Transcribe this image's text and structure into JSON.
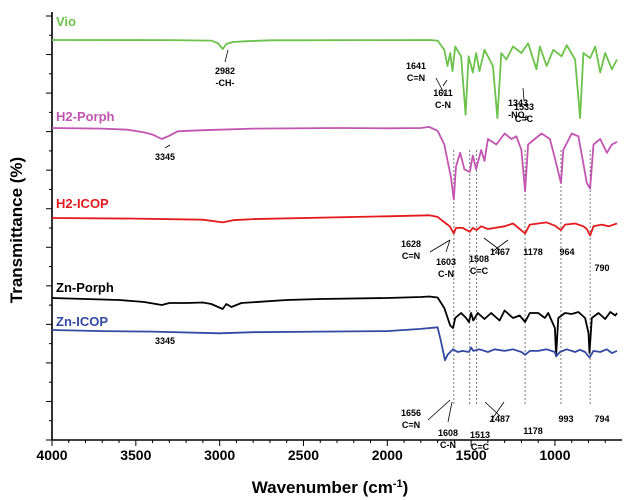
{
  "chart_data": {
    "type": "line",
    "xlabel": "Wavenumber (cm",
    "xlabel_sup": "-1",
    "xlabel_close": ")",
    "ylabel": "Transmittance (%)",
    "xlim": [
      4000,
      600
    ],
    "x_reversed": true,
    "x_ticks": [
      "4000",
      "3500",
      "3000",
      "2500",
      "2000",
      "1500",
      "1000"
    ],
    "x_tick_values": [
      4000,
      3500,
      3000,
      2500,
      2000,
      1500,
      1000
    ],
    "grid": false,
    "series": [
      {
        "name": "Vio",
        "color": "#6cc24a",
        "points": [
          [
            4000,
            0
          ],
          [
            3300,
            0.1
          ],
          [
            3050,
            1
          ],
          [
            3010,
            5
          ],
          [
            2982,
            14
          ],
          [
            2960,
            6
          ],
          [
            2920,
            3
          ],
          [
            2850,
            2
          ],
          [
            2700,
            0.5
          ],
          [
            2000,
            0.2
          ],
          [
            1750,
            0
          ],
          [
            1700,
            1
          ],
          [
            1660,
            15
          ],
          [
            1641,
            40
          ],
          [
            1625,
            20
          ],
          [
            1611,
            48
          ],
          [
            1595,
            10
          ],
          [
            1560,
            25
          ],
          [
            1533,
            115
          ],
          [
            1515,
            25
          ],
          [
            1490,
            50
          ],
          [
            1470,
            20
          ],
          [
            1450,
            48
          ],
          [
            1420,
            15
          ],
          [
            1390,
            30
          ],
          [
            1370,
            40
          ],
          [
            1343,
            120
          ],
          [
            1320,
            20
          ],
          [
            1290,
            30
          ],
          [
            1250,
            10
          ],
          [
            1200,
            20
          ],
          [
            1160,
            5
          ],
          [
            1110,
            45
          ],
          [
            1090,
            10
          ],
          [
            1050,
            40
          ],
          [
            1010,
            15
          ],
          [
            960,
            25
          ],
          [
            930,
            8
          ],
          [
            880,
            30
          ],
          [
            850,
            120
          ],
          [
            830,
            20
          ],
          [
            790,
            28
          ],
          [
            760,
            10
          ],
          [
            730,
            50
          ],
          [
            700,
            20
          ],
          [
            660,
            45
          ],
          [
            630,
            30
          ]
        ]
      },
      {
        "name": "H2-Porph",
        "color": "#c155b1",
        "points": [
          [
            4000,
            0
          ],
          [
            3700,
            1
          ],
          [
            3550,
            3
          ],
          [
            3450,
            8
          ],
          [
            3400,
            12
          ],
          [
            3345,
            20
          ],
          [
            3300,
            14
          ],
          [
            3250,
            6
          ],
          [
            3100,
            4
          ],
          [
            3000,
            3
          ],
          [
            2800,
            1
          ],
          [
            2300,
            0
          ],
          [
            2000,
            0.5
          ],
          [
            1800,
            0
          ],
          [
            1750,
            -2
          ],
          [
            1700,
            5
          ],
          [
            1660,
            30
          ],
          [
            1620,
            90
          ],
          [
            1603,
            130
          ],
          [
            1590,
            70
          ],
          [
            1565,
            45
          ],
          [
            1540,
            75
          ],
          [
            1508,
            80
          ],
          [
            1490,
            50
          ],
          [
            1470,
            75
          ],
          [
            1440,
            40
          ],
          [
            1420,
            60
          ],
          [
            1400,
            20
          ],
          [
            1350,
            30
          ],
          [
            1300,
            10
          ],
          [
            1260,
            20
          ],
          [
            1230,
            15
          ],
          [
            1200,
            40
          ],
          [
            1178,
            115
          ],
          [
            1160,
            30
          ],
          [
            1120,
            20
          ],
          [
            1080,
            10
          ],
          [
            1030,
            20
          ],
          [
            1000,
            55
          ],
          [
            964,
            100
          ],
          [
            950,
            40
          ],
          [
            900,
            10
          ],
          [
            860,
            15
          ],
          [
            830,
            65
          ],
          [
            810,
            100
          ],
          [
            790,
            110
          ],
          [
            770,
            30
          ],
          [
            730,
            20
          ],
          [
            690,
            45
          ],
          [
            660,
            30
          ],
          [
            630,
            25
          ]
        ]
      },
      {
        "name": "H2-ICOP",
        "color": "#e41a1c",
        "points": [
          [
            4000,
            0
          ],
          [
            3500,
            1
          ],
          [
            3100,
            3
          ],
          [
            2982,
            8
          ],
          [
            2920,
            4
          ],
          [
            2800,
            2
          ],
          [
            2000,
            -3
          ],
          [
            1750,
            -5
          ],
          [
            1700,
            -2
          ],
          [
            1650,
            10
          ],
          [
            1628,
            15
          ],
          [
            1603,
            28
          ],
          [
            1590,
            18
          ],
          [
            1550,
            18
          ],
          [
            1508,
            25
          ],
          [
            1490,
            18
          ],
          [
            1467,
            22
          ],
          [
            1440,
            15
          ],
          [
            1400,
            20
          ],
          [
            1300,
            15
          ],
          [
            1250,
            10
          ],
          [
            1178,
            28
          ],
          [
            1150,
            12
          ],
          [
            1100,
            10
          ],
          [
            1050,
            8
          ],
          [
            1000,
            14
          ],
          [
            964,
            22
          ],
          [
            940,
            12
          ],
          [
            880,
            10
          ],
          [
            830,
            15
          ],
          [
            810,
            20
          ],
          [
            790,
            32
          ],
          [
            770,
            15
          ],
          [
            720,
            12
          ],
          [
            680,
            15
          ],
          [
            630,
            10
          ]
        ]
      },
      {
        "name": "Zn-Porph",
        "color": "#000000",
        "points": [
          [
            4000,
            0
          ],
          [
            3800,
            2
          ],
          [
            3600,
            4
          ],
          [
            3450,
            8
          ],
          [
            3345,
            14
          ],
          [
            3300,
            10
          ],
          [
            3200,
            10
          ],
          [
            3100,
            9
          ],
          [
            3050,
            12
          ],
          [
            2982,
            22
          ],
          [
            2960,
            12
          ],
          [
            2930,
            18
          ],
          [
            2870,
            10
          ],
          [
            2600,
            4
          ],
          [
            2400,
            2
          ],
          [
            2000,
            0
          ],
          [
            1800,
            -2
          ],
          [
            1750,
            -3
          ],
          [
            1700,
            -1
          ],
          [
            1660,
            20
          ],
          [
            1625,
            55
          ],
          [
            1608,
            60
          ],
          [
            1595,
            40
          ],
          [
            1560,
            30
          ],
          [
            1530,
            40
          ],
          [
            1513,
            48
          ],
          [
            1500,
            30
          ],
          [
            1487,
            45
          ],
          [
            1460,
            30
          ],
          [
            1420,
            42
          ],
          [
            1380,
            30
          ],
          [
            1330,
            45
          ],
          [
            1300,
            25
          ],
          [
            1250,
            40
          ],
          [
            1210,
            35
          ],
          [
            1178,
            48
          ],
          [
            1150,
            30
          ],
          [
            1100,
            30
          ],
          [
            1060,
            40
          ],
          [
            1040,
            30
          ],
          [
            1000,
            60
          ],
          [
            993,
            115
          ],
          [
            980,
            40
          ],
          [
            940,
            30
          ],
          [
            900,
            32
          ],
          [
            860,
            28
          ],
          [
            820,
            40
          ],
          [
            800,
            70
          ],
          [
            794,
            110
          ],
          [
            780,
            40
          ],
          [
            740,
            30
          ],
          [
            700,
            42
          ],
          [
            670,
            28
          ],
          [
            640,
            35
          ],
          [
            630,
            30
          ]
        ]
      },
      {
        "name": "Zn-ICOP",
        "color": "#3349a3",
        "points": [
          [
            4000,
            0
          ],
          [
            3700,
            2
          ],
          [
            3400,
            3
          ],
          [
            3000,
            6
          ],
          [
            2800,
            4
          ],
          [
            2400,
            3
          ],
          [
            2000,
            2
          ],
          [
            1800,
            -2
          ],
          [
            1700,
            -5
          ],
          [
            1680,
            20
          ],
          [
            1656,
            55
          ],
          [
            1640,
            45
          ],
          [
            1608,
            35
          ],
          [
            1580,
            40
          ],
          [
            1550,
            38
          ],
          [
            1513,
            40
          ],
          [
            1500,
            32
          ],
          [
            1487,
            38
          ],
          [
            1450,
            35
          ],
          [
            1400,
            40
          ],
          [
            1360,
            35
          ],
          [
            1300,
            38
          ],
          [
            1250,
            35
          ],
          [
            1200,
            40
          ],
          [
            1178,
            45
          ],
          [
            1150,
            38
          ],
          [
            1100,
            38
          ],
          [
            1050,
            35
          ],
          [
            1000,
            40
          ],
          [
            993,
            48
          ],
          [
            970,
            40
          ],
          [
            930,
            35
          ],
          [
            880,
            40
          ],
          [
            850,
            36
          ],
          [
            820,
            40
          ],
          [
            794,
            50
          ],
          [
            770,
            38
          ],
          [
            730,
            40
          ],
          [
            690,
            35
          ],
          [
            660,
            42
          ],
          [
            630,
            38
          ]
        ]
      }
    ],
    "annotations": [
      {
        "series": 0,
        "lines": [
          "2982",
          "-CH-"
        ]
      },
      {
        "series": 0,
        "lines": [
          "1641",
          "C=N"
        ]
      },
      {
        "series": 0,
        "lines": [
          "1611",
          "C-N"
        ]
      },
      {
        "series": 0,
        "lines": [
          "1533",
          "C=C"
        ]
      },
      {
        "series": 0,
        "lines": [
          "1343",
          "-NO",
          "2"
        ]
      },
      {
        "series": 1,
        "lines": [
          "3345"
        ]
      },
      {
        "series": 2,
        "lines": [
          "1628",
          "C=N"
        ]
      },
      {
        "series": 2,
        "lines": [
          "1603",
          "C-N"
        ]
      },
      {
        "series": 2,
        "lines": [
          "1508",
          "C=C"
        ]
      },
      {
        "series": 2,
        "lines": [
          "1467"
        ]
      },
      {
        "series": 2,
        "lines": [
          "1178"
        ]
      },
      {
        "series": 2,
        "lines": [
          "964"
        ]
      },
      {
        "series": 2,
        "lines": [
          "790"
        ]
      },
      {
        "series": 3,
        "lines": [
          "3345"
        ]
      },
      {
        "series": 4,
        "lines": [
          "1656",
          "C=N"
        ]
      },
      {
        "series": 4,
        "lines": [
          "1608",
          "C-N"
        ]
      },
      {
        "series": 4,
        "lines": [
          "1513",
          "C=C"
        ]
      },
      {
        "series": 4,
        "lines": [
          "1487"
        ]
      },
      {
        "series": 4,
        "lines": [
          "1178"
        ]
      },
      {
        "series": 4,
        "lines": [
          "993"
        ]
      },
      {
        "series": 4,
        "lines": [
          "794"
        ]
      }
    ],
    "dashed_lines": [
      1603,
      1508,
      1467,
      1178,
      964,
      790
    ]
  }
}
